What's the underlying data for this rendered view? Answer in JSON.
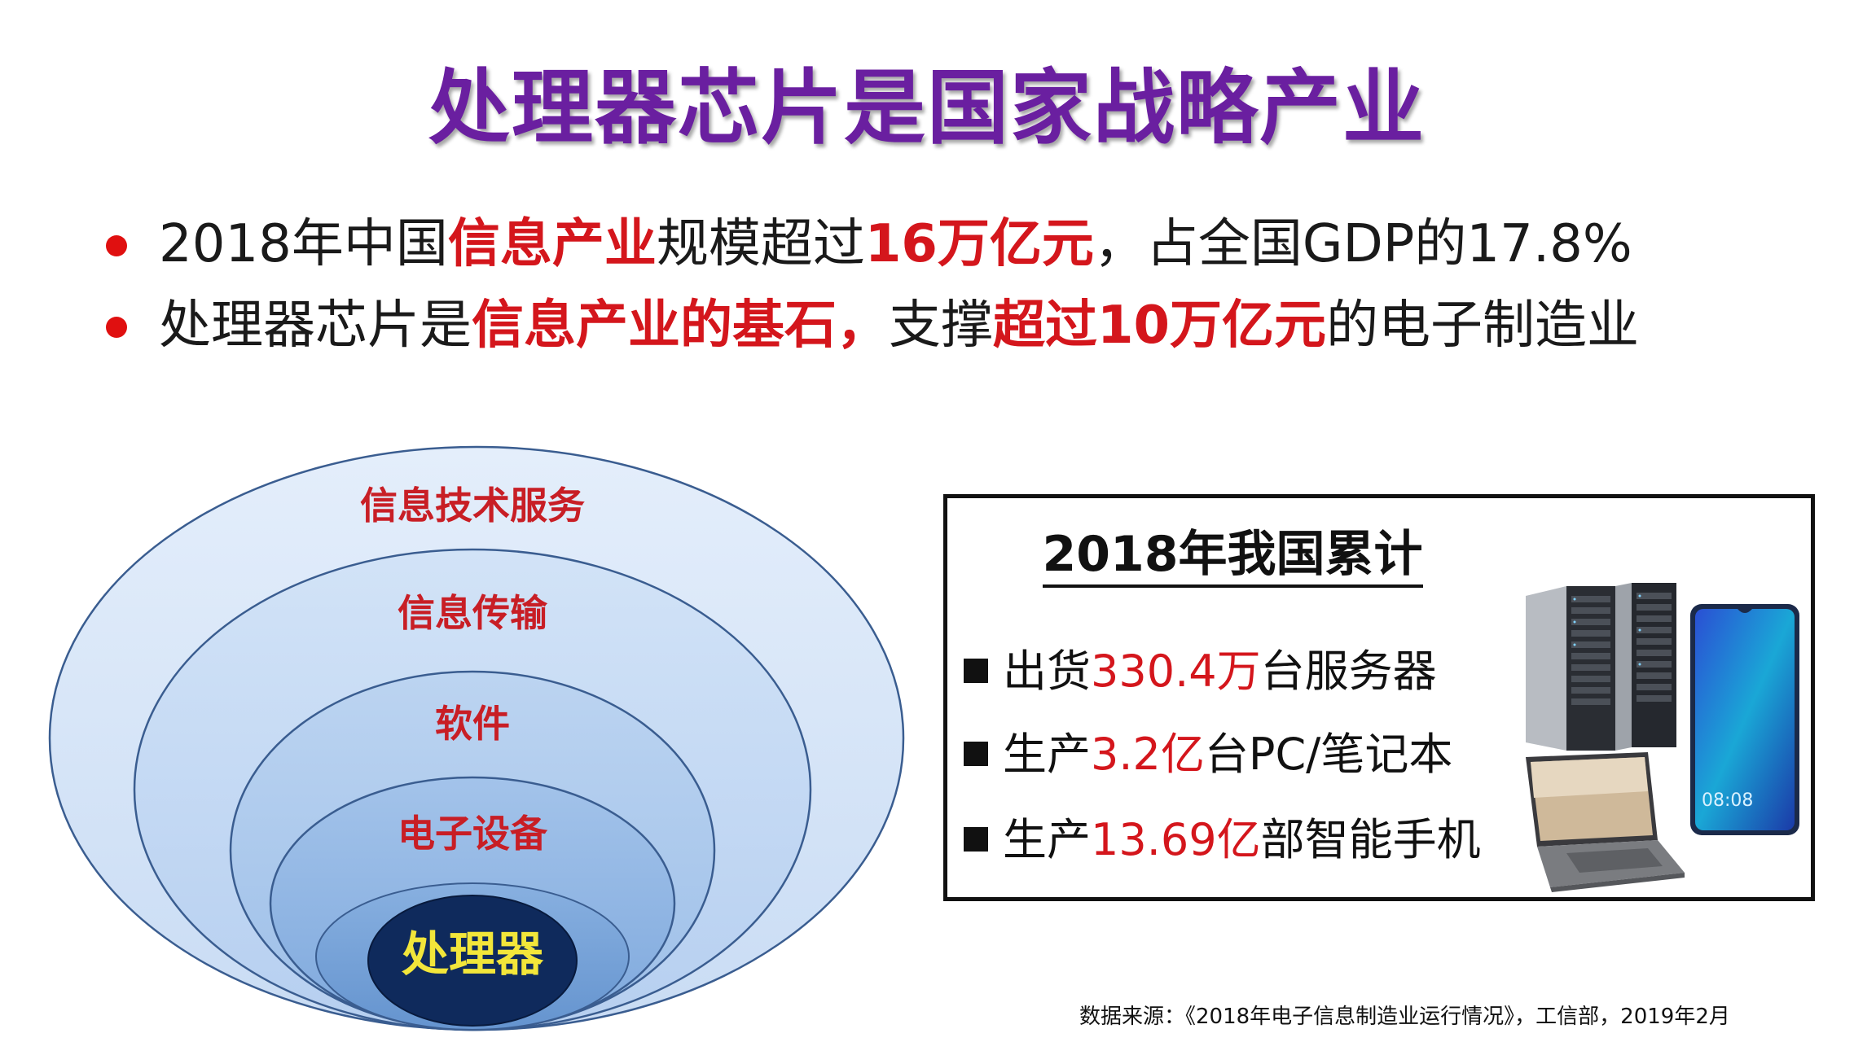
{
  "title": "处理器芯片是国家战略产业",
  "bullets": [
    {
      "p1": "2018年中国",
      "h1": "信息产业",
      "p2": "规模超过",
      "h2": "16万亿元",
      "p3": "，占全国GDP的17.8%"
    },
    {
      "p1": "处理器芯片是",
      "h1": "信息产业的基石，",
      "p2": "支撑",
      "h2": "超过10万亿元",
      "p3": "的电子制造业"
    }
  ],
  "diagram": {
    "layers": [
      "信息技术服务",
      "信息传输",
      "软件",
      "电子设备"
    ],
    "core": "处理器",
    "colors": [
      "#d6e5f8",
      "#c3d8f2",
      "#a9c6ea",
      "#8bb2e0",
      "#6e9fd6"
    ],
    "core_color": "#0f2a5c",
    "outline_color": "#3a5d90"
  },
  "stats": {
    "title": "2018年我国累计",
    "items": [
      {
        "prefix": "出货",
        "value": "330.4万",
        "suffix": "台服务器"
      },
      {
        "prefix": "生产",
        "value": "3.2亿",
        "suffix": "台PC/笔记本"
      },
      {
        "prefix": "生产",
        "value": "13.69亿",
        "suffix": "部智能手机"
      }
    ],
    "phone_time": "08:08"
  },
  "source": "数据来源：《2018年电子信息制造业运行情况》，工信部，2019年2月"
}
